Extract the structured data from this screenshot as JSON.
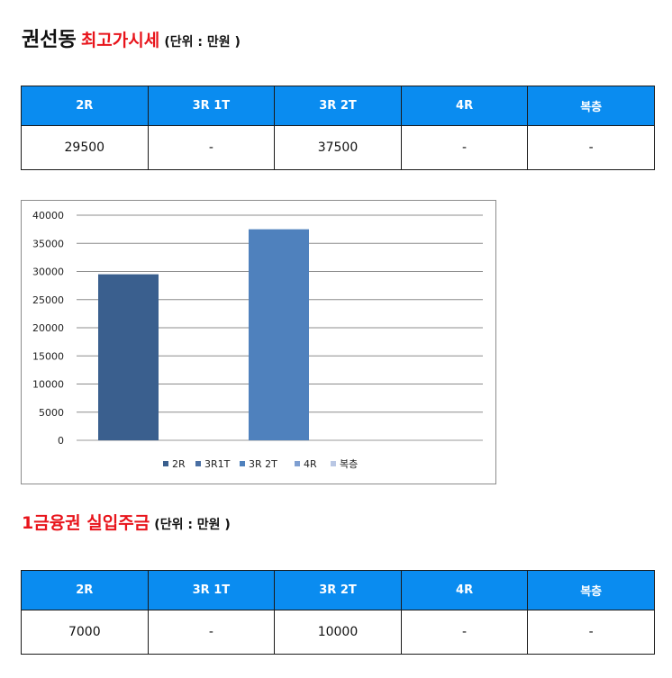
{
  "section1": {
    "title": "권선동",
    "subtitle": "최고가시세",
    "unit": "(단위 : 만원 )",
    "headers": [
      "2R",
      "3R 1T",
      "3R 2T",
      "4R",
      "복층"
    ],
    "values": [
      "29500",
      "-",
      "37500",
      "-",
      "-"
    ]
  },
  "section2": {
    "title": "1금융권 실입주금",
    "unit": "(단위 : 만원 )",
    "headers": [
      "2R",
      "3R 1T",
      "3R 2T",
      "4R",
      "복층"
    ],
    "values": [
      "7000",
      "-",
      "10000",
      "-",
      "-"
    ]
  },
  "colors": {
    "header_bg": "#0a8cf0",
    "title_red": "#e8141b",
    "bar_2R": "#3a5f8e",
    "bar_3R1T": "#4a6fa3",
    "bar_3R2T": "#4f81bd",
    "bar_4R": "#7f9fd1",
    "bar_dup": "#b9c7e4"
  },
  "chart_data": {
    "type": "bar",
    "categories": [
      "2R",
      "3R1T",
      "3R 2T",
      "4R",
      "복층"
    ],
    "values": [
      29500,
      null,
      37500,
      null,
      null
    ],
    "legend": [
      "2R",
      "3R1T",
      "3R 2T",
      "4R",
      "복층"
    ],
    "legend_position": "bottom",
    "yticks": [
      "40000",
      "35000",
      "30000",
      "25000",
      "20000",
      "15000",
      "10000",
      "5000",
      "0"
    ],
    "ylim": [
      0,
      40000
    ],
    "grid": true
  }
}
